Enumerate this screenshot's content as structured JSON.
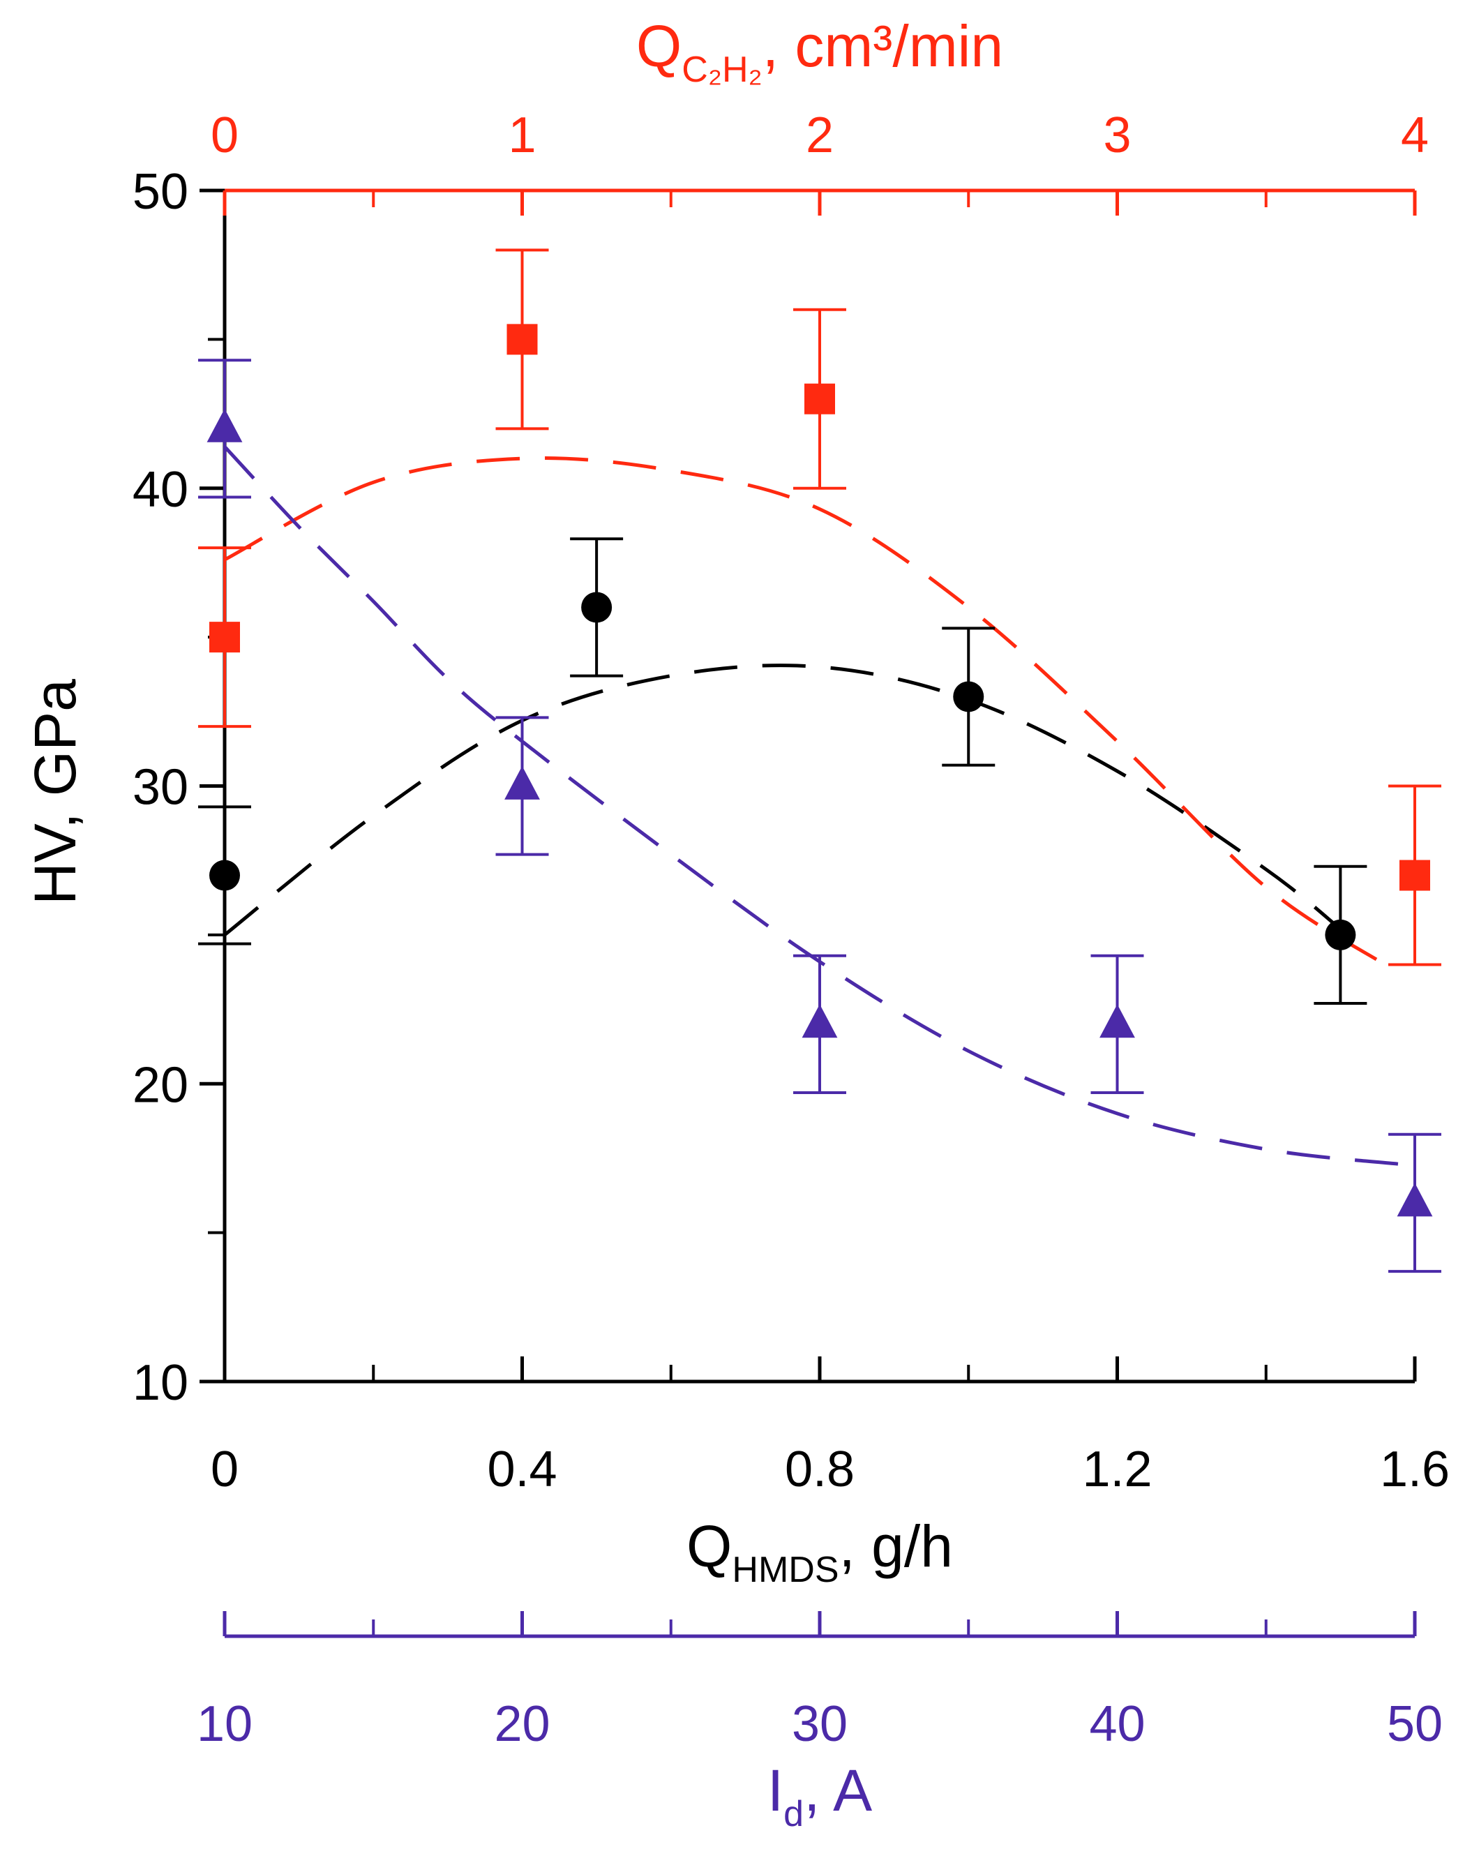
{
  "chart_data": {
    "type": "scatter",
    "colors": {
      "black": "#000000",
      "red": "#ff2a10",
      "blue": "#4b2aa8"
    },
    "axes": {
      "left": {
        "label": "HV, GPa",
        "range": [
          10,
          50
        ],
        "ticks": [
          10,
          20,
          30,
          40,
          50
        ],
        "tick_labels": [
          "10",
          "20",
          "30",
          "40",
          "50"
        ]
      },
      "bottom": {
        "label_main": "Q",
        "label_sub": "HMDS",
        "label_rest": ", g/h",
        "range": [
          0,
          1.6
        ],
        "ticks": [
          0,
          0.4,
          0.8,
          1.2,
          1.6
        ],
        "tick_labels": [
          "0",
          "0.4",
          "0.8",
          "1.2",
          "1.6"
        ]
      },
      "top": {
        "label_main": "Q",
        "label_sub": "C₂H₂",
        "label_rest": ", cm³/min",
        "range": [
          0,
          4
        ],
        "ticks": [
          0,
          1,
          2,
          3,
          4
        ],
        "tick_labels": [
          "0",
          "1",
          "2",
          "3",
          "4"
        ]
      },
      "extra_bottom": {
        "label_main": "I",
        "label_sub": "d",
        "label_rest": ", A",
        "range": [
          10,
          50
        ],
        "ticks": [
          10,
          20,
          30,
          40,
          50
        ],
        "tick_labels": [
          "10",
          "20",
          "30",
          "40",
          "50"
        ]
      }
    },
    "series": [
      {
        "color": "#000000",
        "marker": "circle",
        "x_axis": "bottom",
        "x": [
          0,
          0.5,
          1.0,
          1.5
        ],
        "y": [
          27,
          36,
          33,
          25
        ],
        "err": [
          2.3,
          2.3,
          2.3,
          2.3
        ],
        "fit": {
          "x": [
            0,
            0.2,
            0.4,
            0.6,
            0.8,
            1.0,
            1.2,
            1.4,
            1.5
          ],
          "y": [
            25,
            29,
            32.2,
            33.7,
            34,
            32.9,
            30.5,
            27.2,
            25.2
          ]
        }
      },
      {
        "color": "#ff2a10",
        "marker": "square",
        "x_axis": "top",
        "x": [
          0,
          1,
          2,
          4
        ],
        "y": [
          35,
          45,
          43,
          27
        ],
        "err": [
          3,
          3,
          3,
          3
        ],
        "fit": {
          "x": [
            0,
            0.5,
            1,
            1.5,
            2,
            2.5,
            3,
            3.5,
            3.9
          ],
          "y": [
            37.6,
            40.2,
            41,
            40.6,
            39.3,
            36,
            31.5,
            26.6,
            24
          ]
        }
      },
      {
        "color": "#4b2aa8",
        "marker": "triangle",
        "x_axis": "extra_bottom",
        "x": [
          10,
          20,
          30,
          40,
          50
        ],
        "y": [
          42,
          30,
          22,
          22,
          16
        ],
        "err": [
          2.3,
          2.3,
          2.3,
          2.3,
          2.3
        ],
        "fit": {
          "x": [
            10,
            12.5,
            15,
            17.5,
            20,
            25,
            30,
            35,
            40,
            45,
            49.5
          ],
          "y": [
            41.4,
            38.7,
            36.2,
            33.6,
            31.5,
            27.7,
            24.1,
            21.1,
            19,
            17.8,
            17.3
          ]
        }
      }
    ]
  }
}
